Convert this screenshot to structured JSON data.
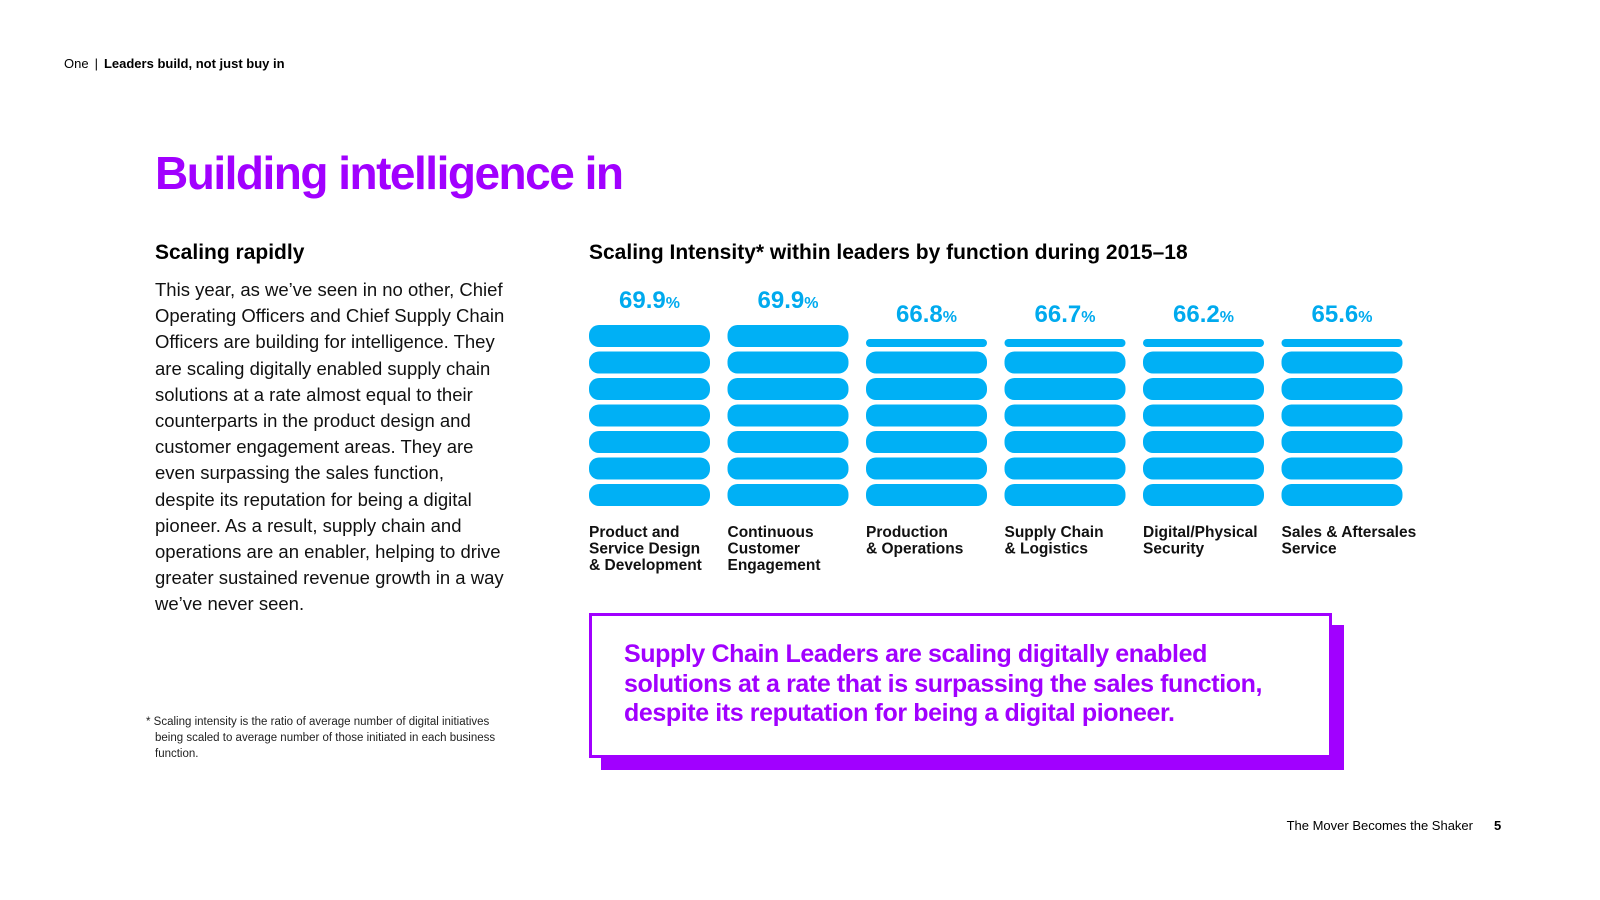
{
  "breadcrumb": {
    "section": "One",
    "separator": "|",
    "current": "Leaders build, not just buy in"
  },
  "page": {
    "title": "Building intelligence in"
  },
  "left": {
    "heading": "Scaling rapidly",
    "body": "This year, as we’ve seen in no other, Chief Operating Officers and Chief Supply Chain Officers are building for intelligence. They are scaling digitally enabled supply chain solutions at a rate almost equal to their counterparts in the product design and customer engagement areas. They are even surpassing the sales function, despite its reputation for being a digital pioneer. As a result, supply chain and operations are an enabler, helping to drive greater sustained revenue growth in a way we’ve never seen.",
    "footnote": "* Scaling intensity is the ratio of average number of digital initiatives being scaled to average number of those initiated in each business function."
  },
  "callout": {
    "text": "Supply Chain Leaders are scaling digitally enabled solutions at a rate that is surpassing the sales function, despite its reputation for being a digital pioneer."
  },
  "footer": {
    "title": "The Mover Becomes the Shaker",
    "page_number": "5"
  },
  "colors": {
    "accent_purple": "#a100ff",
    "bar_blue": "#00b0f5",
    "value_blue": "#00aaee"
  },
  "chart_data": {
    "type": "bar",
    "title": "Scaling Intensity* within leaders by function during 2015–18",
    "value_suffix": "%",
    "categories": [
      [
        "Product and",
        "Service Design",
        "& Development"
      ],
      [
        "Continuous",
        "Customer",
        "Engagement"
      ],
      [
        "Production",
        "& Operations"
      ],
      [
        "Supply Chain",
        "& Logistics"
      ],
      [
        "Digital/Physical",
        "Security"
      ],
      [
        "Sales & Aftersales",
        "Service"
      ]
    ],
    "values": [
      69.9,
      69.9,
      66.8,
      66.7,
      66.2,
      65.6
    ],
    "value_labels": [
      "69.9",
      "69.9",
      "66.8",
      "66.7",
      "66.2",
      "65.6"
    ],
    "segments_per_bar": 7,
    "ylim": [
      0,
      72
    ]
  }
}
